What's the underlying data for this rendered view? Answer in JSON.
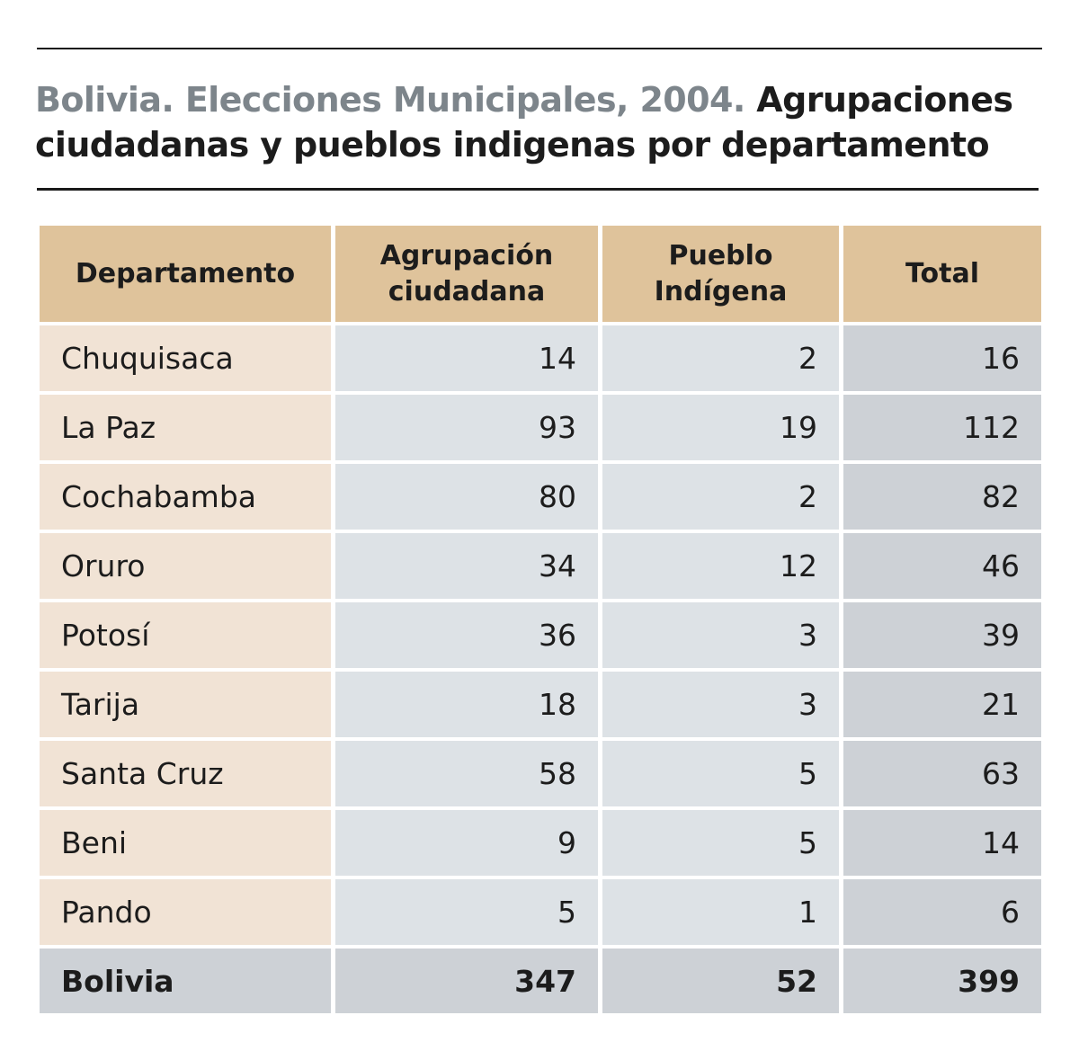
{
  "title": {
    "part1": "Bolivia. Elecciones Municipales, 2004.",
    "part2": "Agrupaciones ciudadanas y pueblos indigenas por departamento"
  },
  "colors": {
    "header_bg": "#dfc39b",
    "name_cell_bg": "#f1e3d5",
    "value_cell_bg": "#dde2e6",
    "total_cell_bg": "#cdd1d6",
    "title_grey": "#7d858b"
  },
  "chart_data": {
    "type": "table",
    "title": "Bolivia. Elecciones Municipales, 2004. Agrupaciones ciudadanas y pueblos indigenas por departamento",
    "columns": [
      "Departamento",
      "Agrupación ciudadana",
      "Pueblo Indígena",
      "Total"
    ],
    "headers": {
      "departamento": "Departamento",
      "agrupacion": "Agrupación ciudadana",
      "pueblo": "Pueblo Indígena",
      "total": "Total"
    },
    "rows": [
      {
        "departamento": "Chuquisaca",
        "agrupacion": 14,
        "pueblo": 2,
        "total": 16
      },
      {
        "departamento": "La Paz",
        "agrupacion": 93,
        "pueblo": 19,
        "total": 112
      },
      {
        "departamento": "Cochabamba",
        "agrupacion": 80,
        "pueblo": 2,
        "total": 82
      },
      {
        "departamento": "Oruro",
        "agrupacion": 34,
        "pueblo": 12,
        "total": 46
      },
      {
        "departamento": "Potosí",
        "agrupacion": 36,
        "pueblo": 3,
        "total": 39
      },
      {
        "departamento": "Tarija",
        "agrupacion": 18,
        "pueblo": 3,
        "total": 21
      },
      {
        "departamento": "Santa Cruz",
        "agrupacion": 58,
        "pueblo": 5,
        "total": 63
      },
      {
        "departamento": "Beni",
        "agrupacion": 9,
        "pueblo": 5,
        "total": 14
      },
      {
        "departamento": "Pando",
        "agrupacion": 5,
        "pueblo": 1,
        "total": 6
      }
    ],
    "summary": {
      "departamento": "Bolivia",
      "agrupacion": 347,
      "pueblo": 52,
      "total": 399
    }
  }
}
